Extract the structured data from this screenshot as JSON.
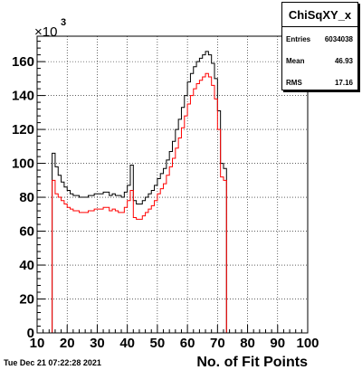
{
  "stats": {
    "title": "ChiSqXY_x",
    "rows": [
      {
        "key": "Entries",
        "value": "6034038"
      },
      {
        "key": "Mean",
        "value": "46.93"
      },
      {
        "key": "RMS",
        "value": "17.16"
      }
    ]
  },
  "timestamp": "Tue Dec 21 07:22:28 2021",
  "chart_data": {
    "type": "line",
    "title": "ChiSqXY_x",
    "xlabel": "No. of Fit Points",
    "ylabel": "",
    "y_multiplier": "×10",
    "y_multiplier_exp": "3",
    "xlim": [
      10,
      100
    ],
    "ylim": [
      0,
      175
    ],
    "x_ticks": [
      10,
      20,
      30,
      40,
      50,
      60,
      70,
      80,
      90,
      100
    ],
    "y_ticks": [
      0,
      20,
      40,
      60,
      80,
      100,
      120,
      140,
      160
    ],
    "bin_width": 1,
    "grid": true,
    "series": [
      {
        "color": "#000000",
        "bins_x": [
          15,
          16,
          17,
          18,
          19,
          20,
          21,
          22,
          23,
          24,
          25,
          26,
          27,
          28,
          29,
          30,
          31,
          32,
          33,
          34,
          35,
          36,
          37,
          38,
          39,
          40,
          41,
          42,
          43,
          44,
          45,
          46,
          47,
          48,
          49,
          50,
          51,
          52,
          53,
          54,
          55,
          56,
          57,
          58,
          59,
          60,
          61,
          62,
          63,
          64,
          65,
          66,
          67,
          68,
          69,
          70,
          71,
          72
        ],
        "values": [
          106,
          98,
          93,
          89,
          86,
          84,
          82,
          81,
          81,
          80,
          80,
          80,
          81,
          81,
          82,
          82,
          82,
          83,
          83,
          81,
          82,
          81,
          81,
          80,
          83,
          87,
          99,
          78,
          76,
          76,
          78,
          80,
          82,
          84,
          87,
          91,
          94,
          97,
          102,
          107,
          113,
          120,
          126,
          133,
          140,
          148,
          153,
          157,
          160,
          162,
          164,
          166,
          164,
          159,
          150,
          131,
          100,
          97
        ]
      },
      {
        "color": "#ff0000",
        "bins_x": [
          15,
          16,
          17,
          18,
          19,
          20,
          21,
          22,
          23,
          24,
          25,
          26,
          27,
          28,
          29,
          30,
          31,
          32,
          33,
          34,
          35,
          36,
          37,
          38,
          39,
          40,
          41,
          42,
          43,
          44,
          45,
          46,
          47,
          48,
          49,
          50,
          51,
          52,
          53,
          54,
          55,
          56,
          57,
          58,
          59,
          60,
          61,
          62,
          63,
          64,
          65,
          66,
          67,
          68,
          69,
          70,
          71,
          72
        ],
        "values": [
          90,
          82,
          80,
          78,
          76,
          74,
          73,
          72,
          72,
          71,
          71,
          71,
          72,
          72,
          73,
          73,
          73,
          74,
          74,
          72,
          73,
          72,
          71,
          71,
          74,
          78,
          84,
          68,
          67,
          67,
          69,
          71,
          73,
          75,
          78,
          82,
          85,
          88,
          93,
          98,
          103,
          109,
          115,
          121,
          128,
          135,
          140,
          144,
          147,
          149,
          151,
          153,
          151,
          146,
          138,
          120,
          92,
          90
        ]
      }
    ]
  }
}
